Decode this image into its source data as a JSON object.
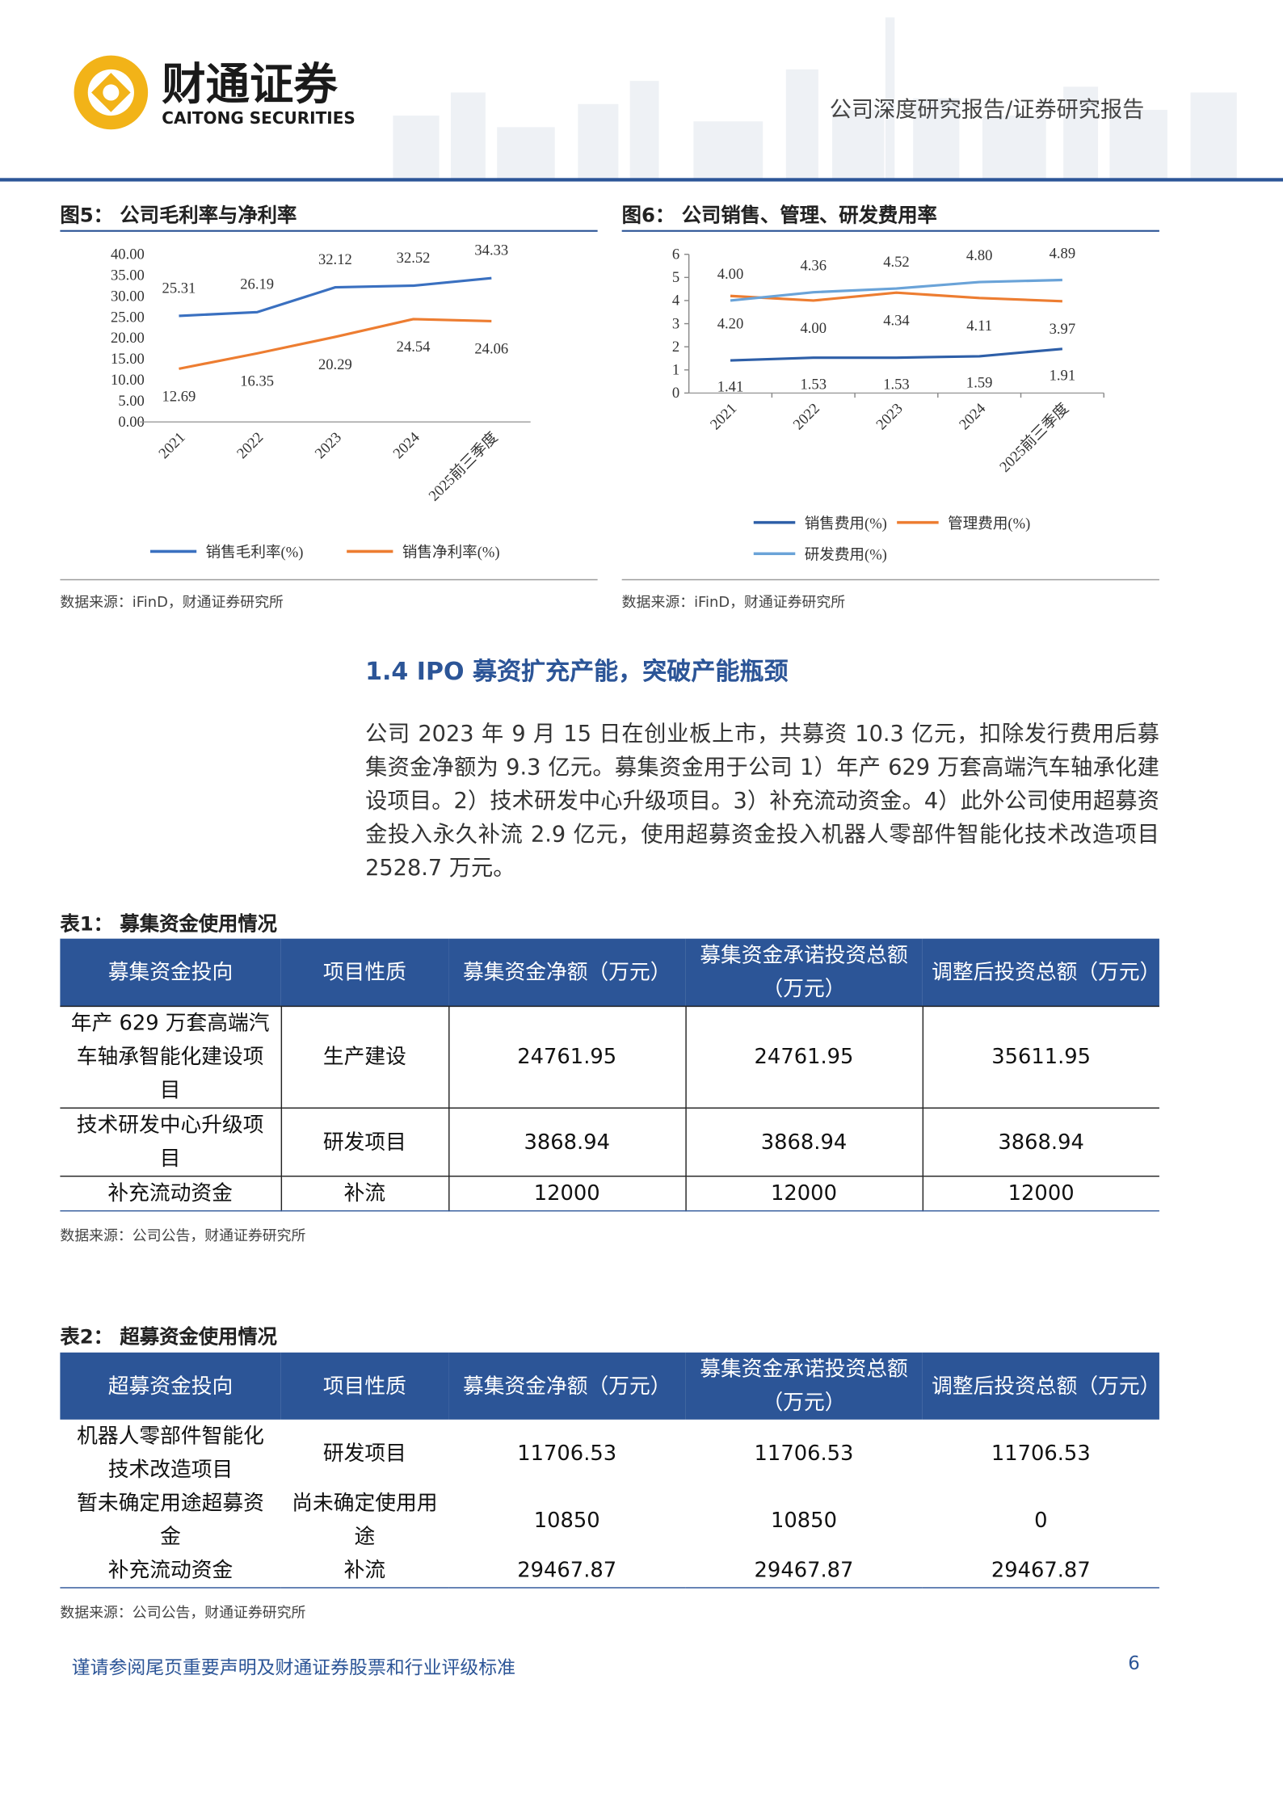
{
  "header": {
    "logo_cn": "财通证券",
    "logo_en": "CAITONG SECURITIES",
    "report_type": "公司深度研究报告/证券研究报告"
  },
  "chart_data": [
    {
      "type": "line",
      "title": "图5：  公司毛利率与净利率",
      "categories": [
        "2021",
        "2022",
        "2023",
        "2024",
        "2025前三季度"
      ],
      "series": [
        {
          "name": "销售毛利率(%)",
          "color": "#3a70c0",
          "values": [
            25.31,
            26.19,
            32.12,
            32.52,
            34.33
          ]
        },
        {
          "name": "销售净利率(%)",
          "color": "#ed7d31",
          "values": [
            12.69,
            16.35,
            20.29,
            24.54,
            24.06
          ]
        }
      ],
      "ylim": [
        0,
        40
      ],
      "yticks": [
        {
          "value": 0,
          "label": "0.00"
        },
        {
          "value": 5,
          "label": "5.00"
        },
        {
          "value": 10,
          "label": "10.00"
        },
        {
          "value": 15,
          "label": "15.00"
        },
        {
          "value": 20,
          "label": "20.00"
        },
        {
          "value": 25,
          "label": "25.00"
        },
        {
          "value": 30,
          "label": "30.00"
        },
        {
          "value": 35,
          "label": "35.00"
        },
        {
          "value": 40,
          "label": "40.00"
        }
      ],
      "source": "数据来源：iFinD，财通证券研究所"
    },
    {
      "type": "line",
      "title": "图6：  公司销售、管理、研发费用率",
      "categories": [
        "2021",
        "2022",
        "2023",
        "2024",
        "2025前三季度"
      ],
      "series": [
        {
          "name": "销售费用(%)",
          "color": "#2e5fa8",
          "values": [
            1.41,
            1.53,
            1.53,
            1.59,
            1.91
          ]
        },
        {
          "name": "管理费用(%)",
          "color": "#ed7d31",
          "values": [
            4.2,
            4.0,
            4.34,
            4.11,
            3.97
          ],
          "value_labels": [
            "4.20",
            "4.00",
            "4.34",
            "4.11",
            "3.97"
          ]
        },
        {
          "name": "研发费用(%)",
          "color": "#6aa3d8",
          "values": [
            4.0,
            4.36,
            4.52,
            4.8,
            4.89
          ],
          "value_labels": [
            "4.00",
            "4.36",
            "4.52",
            "4.80",
            "4.89"
          ]
        }
      ],
      "ylim": [
        0,
        6
      ],
      "yticks": [
        0,
        1,
        2,
        3,
        4,
        5,
        6
      ],
      "source": "数据来源：iFinD，财通证券研究所"
    }
  ],
  "section": {
    "heading": "1.4  IPO 募资扩充产能，突破产能瓶颈",
    "paragraph": "公司 2023 年 9 月 15 日在创业板上市，共募资 10.3 亿元，扣除发行费用后募集资金净额为 9.3 亿元。募集资金用于公司 1）年产 629 万套高端汽车轴承化建设项目。2）技术研发中心升级项目。3）补充流动资金。4）此外公司使用超募资金投入永久补流 2.9 亿元，使用超募资金投入机器人零部件智能化技术改造项目 2528.7 万元。"
  },
  "tables": [
    {
      "title": "表1：  募集资金使用情况",
      "columns": [
        "募集资金投向",
        "项目性质",
        "募集资金净额（万元）",
        "募集资金承诺投资总额（万元）",
        "调整后投资总额（万元）"
      ],
      "rows": [
        [
          "年产 629 万套高端汽车轴承智能化建设项目",
          "生产建设",
          "24761.95",
          "24761.95",
          "35611.95"
        ],
        [
          "技术研发中心升级项目",
          "研发项目",
          "3868.94",
          "3868.94",
          "3868.94"
        ],
        [
          "补充流动资金",
          "补流",
          "12000",
          "12000",
          "12000"
        ]
      ],
      "source": "数据来源：公司公告，财通证券研究所"
    },
    {
      "title": "表2：  超募资金使用情况",
      "columns": [
        "超募资金投向",
        "项目性质",
        "募集资金净额（万元）",
        "募集资金承诺投资总额（万元）",
        "调整后投资总额（万元）"
      ],
      "rows": [
        [
          "机器人零部件智能化技术改造项目",
          "研发项目",
          "11706.53",
          "11706.53",
          "11706.53"
        ],
        [
          "暂未确定用途超募资金",
          "尚未确定使用用途",
          "10850",
          "10850",
          "0"
        ],
        [
          "补充流动资金",
          "补流",
          "29467.87",
          "29467.87",
          "29467.87"
        ]
      ],
      "source": "数据来源：公司公告，财通证券研究所"
    }
  ],
  "footer": {
    "disclaimer": "谨请参阅尾页重要声明及财通证券股票和行业评级标准",
    "page": "6"
  }
}
